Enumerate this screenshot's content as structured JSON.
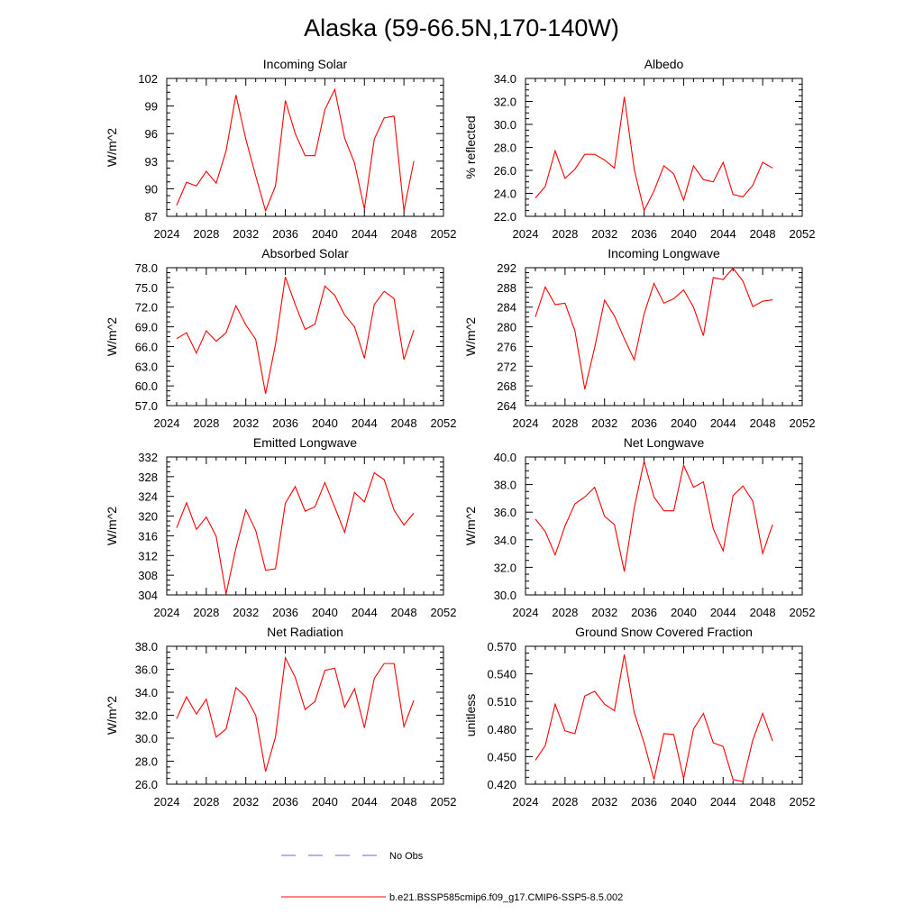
{
  "figure": {
    "title": "Alaska (59-66.5N,170-140W)",
    "legend": [
      {
        "label": "No Obs",
        "color": "#6a6acd",
        "dashed": true
      },
      {
        "label": "b.e21.BSSP585cmip6.f09_g17.CMIP6-SSP5-8.5.002",
        "color": "#ff0000",
        "dashed": false
      }
    ]
  },
  "chart_data": [
    {
      "type": "line",
      "title": "Incoming Solar",
      "ylabel": "W/m^2",
      "xlabel": "",
      "xlim": [
        2024,
        2052
      ],
      "ylim": [
        87,
        102
      ],
      "xticks": [
        "2024",
        "2028",
        "2032",
        "2036",
        "2040",
        "2044",
        "2048",
        "2052"
      ],
      "yticks": [
        "87",
        "90",
        "93",
        "96",
        "99",
        "102"
      ],
      "x": [
        2025,
        2026,
        2027,
        2028,
        2029,
        2030,
        2031,
        2032,
        2033,
        2034,
        2035,
        2036,
        2037,
        2038,
        2039,
        2040,
        2041,
        2042,
        2043,
        2044,
        2045,
        2046,
        2047,
        2048,
        2049
      ],
      "series": [
        {
          "color": "#ff0000",
          "values": [
            88.2,
            90.7,
            90.3,
            91.9,
            90.6,
            94.1,
            100.2,
            95.4,
            91.4,
            87.6,
            90.3,
            99.6,
            96.0,
            93.6,
            93.6,
            98.6,
            100.8,
            95.5,
            92.8,
            87.8,
            95.4,
            97.7,
            97.9,
            87.6,
            93.0
          ]
        }
      ]
    },
    {
      "type": "line",
      "title": "Albedo",
      "ylabel": "% reflected",
      "xlabel": "",
      "xlim": [
        2024,
        2052
      ],
      "ylim": [
        22,
        34
      ],
      "xticks": [
        "2024",
        "2028",
        "2032",
        "2036",
        "2040",
        "2044",
        "2048",
        "2052"
      ],
      "yticks": [
        "22.0",
        "24.0",
        "26.0",
        "28.0",
        "30.0",
        "32.0",
        "34.0"
      ],
      "x": [
        2025,
        2026,
        2027,
        2028,
        2029,
        2030,
        2031,
        2032,
        2033,
        2034,
        2035,
        2036,
        2037,
        2038,
        2039,
        2040,
        2041,
        2042,
        2043,
        2044,
        2045,
        2046,
        2047,
        2048,
        2049
      ],
      "series": [
        {
          "color": "#ff0000",
          "values": [
            23.6,
            24.6,
            27.7,
            25.3,
            26.1,
            27.4,
            27.4,
            26.9,
            26.2,
            32.4,
            26.1,
            22.5,
            24.2,
            26.4,
            25.7,
            23.4,
            26.4,
            25.2,
            25.0,
            26.7,
            23.9,
            23.7,
            24.7,
            26.7,
            26.2
          ]
        }
      ]
    },
    {
      "type": "line",
      "title": "Absorbed Solar",
      "ylabel": "W/m^2",
      "xlabel": "",
      "xlim": [
        2024,
        2052
      ],
      "ylim": [
        57,
        78
      ],
      "xticks": [
        "2024",
        "2028",
        "2032",
        "2036",
        "2040",
        "2044",
        "2048",
        "2052"
      ],
      "yticks": [
        "57.0",
        "60.0",
        "63.0",
        "66.0",
        "69.0",
        "72.0",
        "75.0",
        "78.0"
      ],
      "x": [
        2025,
        2026,
        2027,
        2028,
        2029,
        2030,
        2031,
        2032,
        2033,
        2034,
        2035,
        2036,
        2037,
        2038,
        2039,
        2040,
        2041,
        2042,
        2043,
        2044,
        2045,
        2046,
        2047,
        2048,
        2049
      ],
      "series": [
        {
          "color": "#ff0000",
          "values": [
            67.2,
            68.1,
            65.0,
            68.4,
            66.8,
            68.1,
            72.2,
            69.3,
            67.1,
            58.8,
            66.3,
            76.6,
            72.4,
            68.6,
            69.4,
            75.2,
            73.8,
            70.8,
            69.0,
            64.2,
            72.4,
            74.4,
            73.3,
            64.0,
            68.5
          ]
        }
      ]
    },
    {
      "type": "line",
      "title": "Incoming Longwave",
      "ylabel": "W/m^2",
      "xlabel": "",
      "xlim": [
        2024,
        2052
      ],
      "ylim": [
        264,
        292
      ],
      "xticks": [
        "2024",
        "2028",
        "2032",
        "2036",
        "2040",
        "2044",
        "2048",
        "2052"
      ],
      "yticks": [
        "264",
        "268",
        "272",
        "276",
        "280",
        "284",
        "288",
        "292"
      ],
      "x": [
        2025,
        2026,
        2027,
        2028,
        2029,
        2030,
        2031,
        2032,
        2033,
        2034,
        2035,
        2036,
        2037,
        2038,
        2039,
        2040,
        2041,
        2042,
        2043,
        2044,
        2045,
        2046,
        2047,
        2048,
        2049
      ],
      "series": [
        {
          "color": "#ff0000",
          "values": [
            282.0,
            288.1,
            284.5,
            284.8,
            279.2,
            267.3,
            275.8,
            285.4,
            282.2,
            277.6,
            273.3,
            282.6,
            288.8,
            284.8,
            285.7,
            287.5,
            284.0,
            278.2,
            290.0,
            289.6,
            291.9,
            289.3,
            284.1,
            285.2,
            285.5
          ]
        }
      ]
    },
    {
      "type": "line",
      "title": "Emitted Longwave",
      "ylabel": "W/m^2",
      "xlabel": "",
      "xlim": [
        2024,
        2052
      ],
      "ylim": [
        304,
        332
      ],
      "xticks": [
        "2024",
        "2028",
        "2032",
        "2036",
        "2040",
        "2044",
        "2048",
        "2052"
      ],
      "yticks": [
        "304",
        "308",
        "312",
        "316",
        "320",
        "324",
        "328",
        "332"
      ],
      "x": [
        2025,
        2026,
        2027,
        2028,
        2029,
        2030,
        2031,
        2032,
        2033,
        2034,
        2035,
        2036,
        2037,
        2038,
        2039,
        2040,
        2041,
        2042,
        2043,
        2044,
        2045,
        2046,
        2047,
        2048,
        2049
      ],
      "series": [
        {
          "color": "#ff0000",
          "values": [
            317.6,
            322.7,
            317.3,
            319.8,
            315.9,
            304.2,
            313.5,
            321.3,
            317.1,
            309.0,
            309.3,
            322.6,
            326.0,
            321.0,
            321.9,
            326.8,
            321.8,
            316.7,
            324.8,
            322.9,
            328.8,
            327.4,
            321.2,
            318.2,
            320.6
          ]
        }
      ]
    },
    {
      "type": "line",
      "title": "Net Longwave",
      "ylabel": "W/m^2",
      "xlabel": "",
      "xlim": [
        2024,
        2052
      ],
      "ylim": [
        30,
        40
      ],
      "xticks": [
        "2024",
        "2028",
        "2032",
        "2036",
        "2040",
        "2044",
        "2048",
        "2052"
      ],
      "yticks": [
        "30.0",
        "32.0",
        "34.0",
        "36.0",
        "38.0",
        "40.0"
      ],
      "x": [
        2025,
        2026,
        2027,
        2028,
        2029,
        2030,
        2031,
        2032,
        2033,
        2034,
        2035,
        2036,
        2037,
        2038,
        2039,
        2040,
        2041,
        2042,
        2043,
        2044,
        2045,
        2046,
        2047,
        2048,
        2049
      ],
      "series": [
        {
          "color": "#ff0000",
          "values": [
            35.5,
            34.6,
            32.9,
            35.0,
            36.6,
            37.1,
            37.8,
            35.7,
            35.1,
            31.7,
            36.3,
            39.7,
            37.1,
            36.1,
            36.1,
            39.4,
            37.8,
            38.2,
            34.8,
            33.2,
            37.2,
            37.9,
            36.8,
            33.0,
            35.1
          ]
        }
      ]
    },
    {
      "type": "line",
      "title": "Net Radiation",
      "ylabel": "W/m^2",
      "xlabel": "",
      "xlim": [
        2024,
        2052
      ],
      "ylim": [
        26,
        38
      ],
      "xticks": [
        "2024",
        "2028",
        "2032",
        "2036",
        "2040",
        "2044",
        "2048",
        "2052"
      ],
      "yticks": [
        "26.0",
        "28.0",
        "30.0",
        "32.0",
        "34.0",
        "36.0",
        "38.0"
      ],
      "x": [
        2025,
        2026,
        2027,
        2028,
        2029,
        2030,
        2031,
        2032,
        2033,
        2034,
        2035,
        2036,
        2037,
        2038,
        2039,
        2040,
        2041,
        2042,
        2043,
        2044,
        2045,
        2046,
        2047,
        2048,
        2049
      ],
      "series": [
        {
          "color": "#ff0000",
          "values": [
            31.7,
            33.6,
            32.1,
            33.4,
            30.1,
            30.8,
            34.4,
            33.6,
            32.0,
            27.1,
            30.1,
            37.0,
            35.3,
            32.5,
            33.2,
            35.9,
            36.1,
            32.7,
            34.3,
            30.9,
            35.2,
            36.5,
            36.5,
            31.0,
            33.3
          ]
        }
      ]
    },
    {
      "type": "line",
      "title": "Ground Snow Covered Fraction",
      "ylabel": "unitless",
      "xlabel": "",
      "xlim": [
        2024,
        2052
      ],
      "ylim": [
        0.42,
        0.57
      ],
      "xticks": [
        "2024",
        "2028",
        "2032",
        "2036",
        "2040",
        "2044",
        "2048",
        "2052"
      ],
      "yticks": [
        "0.420",
        "0.450",
        "0.480",
        "0.510",
        "0.540",
        "0.570"
      ],
      "x": [
        2025,
        2026,
        2027,
        2028,
        2029,
        2030,
        2031,
        2032,
        2033,
        2034,
        2035,
        2036,
        2037,
        2038,
        2039,
        2040,
        2041,
        2042,
        2043,
        2044,
        2045,
        2046,
        2047,
        2048,
        2049
      ],
      "series": [
        {
          "color": "#ff0000",
          "values": [
            0.446,
            0.462,
            0.507,
            0.478,
            0.475,
            0.516,
            0.521,
            0.507,
            0.5,
            0.561,
            0.498,
            0.465,
            0.425,
            0.475,
            0.474,
            0.426,
            0.48,
            0.497,
            0.465,
            0.461,
            0.425,
            0.423,
            0.468,
            0.497,
            0.467
          ]
        }
      ]
    }
  ]
}
